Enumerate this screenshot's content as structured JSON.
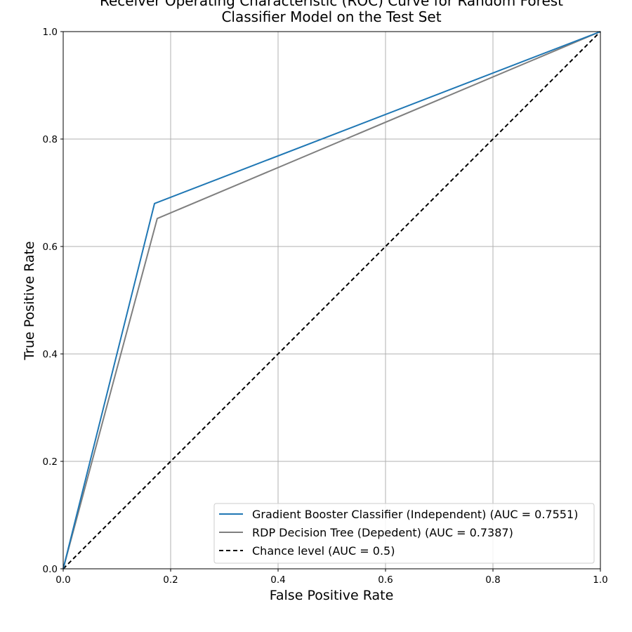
{
  "chart_data": {
    "type": "line",
    "title_lines": [
      "Receiver Operating Characteristic (ROC) Curve for Random Forest",
      "Classifier Model on the Test Set"
    ],
    "xlabel": "False Positive Rate",
    "ylabel": "True Positive Rate",
    "xlim": [
      0,
      1
    ],
    "ylim": [
      0,
      1
    ],
    "xticks": [
      0.0,
      0.2,
      0.4,
      0.6,
      0.8,
      1.0
    ],
    "yticks": [
      0.0,
      0.2,
      0.4,
      0.6,
      0.8,
      1.0
    ],
    "xtick_labels": [
      "0.0",
      "0.2",
      "0.4",
      "0.6",
      "0.8",
      "1.0"
    ],
    "ytick_labels": [
      "0.0",
      "0.2",
      "0.4",
      "0.6",
      "0.8",
      "1.0"
    ],
    "grid": true,
    "legend_position": "lower-right",
    "series": [
      {
        "name": "Gradient Booster Classifier (Independent) (AUC = 0.7551)",
        "color": "#1f77b4",
        "style": "solid",
        "x": [
          0.0,
          0.17,
          1.0
        ],
        "y": [
          0.0,
          0.68,
          1.0
        ]
      },
      {
        "name": "RDP Decision Tree (Depedent) (AUC = 0.7387)",
        "color": "#7f7f7f",
        "style": "solid",
        "x": [
          0.0,
          0.175,
          1.0
        ],
        "y": [
          0.0,
          0.652,
          1.0
        ]
      },
      {
        "name": "Chance level (AUC = 0.5)",
        "color": "#000000",
        "style": "dashed",
        "x": [
          0.0,
          1.0
        ],
        "y": [
          0.0,
          1.0
        ]
      }
    ]
  }
}
